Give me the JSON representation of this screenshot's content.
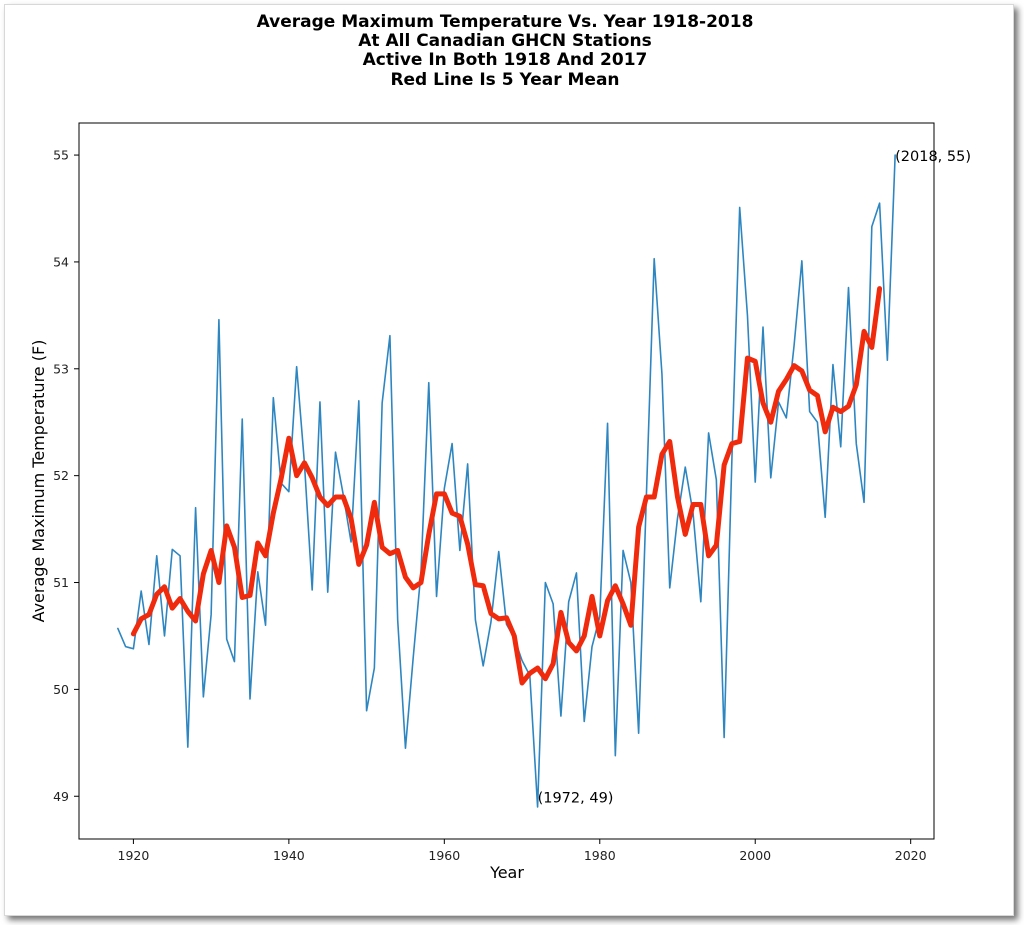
{
  "chart_data": {
    "type": "line",
    "title_lines": [
      "Average Maximum Temperature Vs. Year 1918-2018",
      "At All Canadian GHCN Stations",
      "Active In Both 1918 And 2017",
      "Red Line Is 5 Year Mean"
    ],
    "xlabel": "Year",
    "ylabel": "Average Maximum Temperature (F)",
    "xlim": [
      1913,
      2023
    ],
    "ylim": [
      48.6,
      55.3
    ],
    "x_ticks": [
      "1920",
      "1940",
      "1960",
      "1980",
      "2000",
      "2020"
    ],
    "y_ticks": [
      "49",
      "50",
      "51",
      "52",
      "53",
      "54",
      "55"
    ],
    "grid": false,
    "series": [
      {
        "color": "#2e86c1",
        "x": [
          1918,
          1919,
          1920,
          1921,
          1922,
          1923,
          1924,
          1925,
          1926,
          1927,
          1928,
          1929,
          1930,
          1931,
          1932,
          1933,
          1934,
          1935,
          1936,
          1937,
          1938,
          1939,
          1940,
          1941,
          1942,
          1943,
          1944,
          1945,
          1946,
          1947,
          1948,
          1949,
          1950,
          1951,
          1952,
          1953,
          1954,
          1955,
          1956,
          1957,
          1958,
          1959,
          1960,
          1961,
          1962,
          1963,
          1964,
          1965,
          1966,
          1967,
          1968,
          1969,
          1970,
          1971,
          1972,
          1973,
          1974,
          1975,
          1976,
          1977,
          1978,
          1979,
          1980,
          1981,
          1982,
          1983,
          1984,
          1985,
          1986,
          1987,
          1988,
          1989,
          1990,
          1991,
          1992,
          1993,
          1994,
          1995,
          1996,
          1997,
          1998,
          1999,
          2000,
          2001,
          2002,
          2003,
          2004,
          2005,
          2006,
          2007,
          2008,
          2009,
          2010,
          2011,
          2012,
          2013,
          2014,
          2015,
          2016,
          2017,
          2018
        ],
        "values": [
          50.57,
          50.4,
          50.38,
          50.92,
          50.42,
          51.25,
          50.5,
          51.31,
          51.25,
          49.46,
          51.7,
          49.93,
          50.7,
          53.46,
          50.47,
          50.26,
          52.53,
          49.91,
          51.1,
          50.6,
          52.73,
          51.93,
          51.85,
          53.02,
          52.12,
          50.93,
          52.69,
          50.91,
          52.22,
          51.82,
          51.38,
          52.7,
          49.8,
          50.2,
          52.68,
          53.31,
          50.65,
          49.45,
          50.3,
          51.1,
          52.87,
          50.87,
          51.88,
          52.3,
          51.3,
          52.11,
          50.65,
          50.22,
          50.63,
          51.29,
          50.61,
          50.48,
          50.27,
          50.13,
          48.9,
          51.0,
          50.8,
          49.75,
          50.82,
          51.09,
          49.7,
          50.4,
          50.68,
          52.49,
          49.38,
          51.3,
          51.0,
          49.59,
          51.82,
          54.03,
          52.95,
          50.95,
          51.6,
          52.08,
          51.65,
          50.82,
          52.4,
          51.96,
          49.55,
          52.16,
          54.51,
          53.5,
          51.94,
          53.39,
          51.98,
          52.69,
          52.54,
          53.22,
          54.01,
          52.6,
          52.5,
          51.61,
          53.04,
          52.27,
          53.76,
          52.3,
          51.75,
          54.33,
          54.55,
          53.08,
          55.0
        ]
      },
      {
        "color": "#f02a0c",
        "x": [
          1920,
          1921,
          1922,
          1923,
          1924,
          1925,
          1926,
          1927,
          1928,
          1929,
          1930,
          1931,
          1932,
          1933,
          1934,
          1935,
          1936,
          1937,
          1938,
          1939,
          1940,
          1941,
          1942,
          1943,
          1944,
          1945,
          1946,
          1947,
          1948,
          1949,
          1950,
          1951,
          1952,
          1953,
          1954,
          1955,
          1956,
          1957,
          1958,
          1959,
          1960,
          1961,
          1962,
          1963,
          1964,
          1965,
          1966,
          1967,
          1968,
          1969,
          1970,
          1971,
          1972,
          1973,
          1974,
          1975,
          1976,
          1977,
          1978,
          1979,
          1980,
          1981,
          1982,
          1983,
          1984,
          1985,
          1986,
          1987,
          1988,
          1989,
          1990,
          1991,
          1992,
          1993,
          1994,
          1995,
          1996,
          1997,
          1998,
          1999,
          2000,
          2001,
          2002,
          2003,
          2004,
          2005,
          2006,
          2007,
          2008,
          2009,
          2010,
          2011,
          2012,
          2013,
          2014,
          2015,
          2016
        ],
        "values": [
          50.52,
          50.66,
          50.7,
          50.89,
          50.96,
          50.76,
          50.85,
          50.73,
          50.64,
          51.08,
          51.3,
          51.0,
          51.53,
          51.33,
          50.86,
          50.88,
          51.37,
          51.25,
          51.65,
          51.97,
          52.35,
          52.0,
          52.12,
          51.98,
          51.8,
          51.72,
          51.8,
          51.8,
          51.6,
          51.17,
          51.35,
          51.75,
          51.33,
          51.27,
          51.3,
          51.05,
          50.95,
          51.0,
          51.45,
          51.83,
          51.83,
          51.65,
          51.62,
          51.36,
          50.98,
          50.97,
          50.71,
          50.66,
          50.67,
          50.5,
          50.06,
          50.15,
          50.2,
          50.1,
          50.24,
          50.72,
          50.44,
          50.36,
          50.5,
          50.87,
          50.5,
          50.83,
          50.97,
          50.8,
          50.6,
          51.52,
          51.8,
          51.8,
          52.2,
          52.32,
          51.8,
          51.45,
          51.73,
          51.73,
          51.25,
          51.35,
          52.1,
          52.3,
          52.32,
          53.1,
          53.07,
          52.68,
          52.5,
          52.79,
          52.9,
          53.03,
          52.98,
          52.8,
          52.75,
          52.41,
          52.64,
          52.6,
          52.65,
          52.85,
          53.35,
          53.2,
          53.75
        ]
      }
    ],
    "annotations": [
      {
        "x": 2018,
        "y": 55,
        "text": "(2018, 55)"
      },
      {
        "x": 1972,
        "y": 49,
        "text": "(1972, 49)"
      }
    ]
  }
}
